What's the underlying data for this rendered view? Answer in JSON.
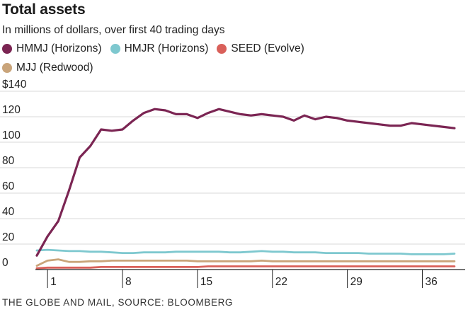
{
  "chart_data": {
    "type": "line",
    "title": "Total assets",
    "subtitle": "In millions of dollars, over first 40 trading days",
    "source": "THE GLOBE AND MAIL, SOURCE: BLOOMBERG",
    "xlabel": "",
    "ylabel": "",
    "x_ticks": [
      1,
      8,
      15,
      22,
      29,
      36
    ],
    "x_range": [
      0,
      40
    ],
    "y_ticks": [
      "$140",
      "120",
      "100",
      "80",
      "60",
      "40",
      "20",
      "0"
    ],
    "y_tick_values": [
      140,
      120,
      100,
      80,
      60,
      40,
      20,
      0
    ],
    "ylim": [
      0,
      140
    ],
    "grid": "horizontal",
    "legend_position": "top-left",
    "x": [
      0,
      1,
      2,
      3,
      4,
      5,
      6,
      7,
      8,
      9,
      10,
      11,
      12,
      13,
      14,
      15,
      16,
      17,
      18,
      19,
      20,
      21,
      22,
      23,
      24,
      25,
      26,
      27,
      28,
      29,
      30,
      31,
      32,
      33,
      34,
      35,
      36,
      37,
      38,
      39
    ],
    "series": [
      {
        "name": "HMMJ (Horizons)",
        "color": "#7b2553",
        "values": [
          11,
          26,
          38,
          62,
          88,
          97,
          110,
          109,
          110,
          117,
          123,
          126,
          125,
          122,
          122,
          119,
          123,
          126,
          124,
          122,
          121,
          122,
          121,
          120,
          117,
          121,
          118,
          120,
          119,
          117,
          116,
          115,
          114,
          113,
          113,
          115,
          114,
          113,
          112,
          111
        ]
      },
      {
        "name": "HMJR (Horizons)",
        "color": "#7ec8cf",
        "values": [
          15,
          15.5,
          15,
          14.5,
          14.5,
          14,
          14,
          13.5,
          13,
          13,
          13.5,
          13.5,
          13.5,
          14,
          14,
          14,
          14,
          14,
          13.5,
          13.5,
          14,
          14.5,
          14,
          14,
          13.5,
          13.5,
          13.5,
          13,
          13,
          13,
          13,
          12.5,
          12.5,
          12.5,
          12.5,
          12,
          12,
          12,
          12,
          12.5
        ]
      },
      {
        "name": "SEED (Evolve)",
        "color": "#d9605a",
        "values": [
          1,
          1.5,
          1.5,
          1.5,
          1.5,
          1.5,
          2,
          2,
          2,
          2,
          2,
          2,
          2,
          2,
          2,
          2,
          2.5,
          2.5,
          2.5,
          2.5,
          2.5,
          2.5,
          2.5,
          2.5,
          2.5,
          2.5,
          2.5,
          2.5,
          2.5,
          2.5,
          2.5,
          2.5,
          2.5,
          2.5,
          2.5,
          2.5,
          2.5,
          2.5,
          2.5,
          2.5
        ]
      },
      {
        "name": "MJJ (Redwood)",
        "color": "#c9a47a",
        "values": [
          3,
          7,
          8,
          6,
          6,
          6.5,
          6.5,
          7,
          7,
          7,
          7,
          7,
          7,
          7,
          7,
          6.5,
          6.5,
          6.5,
          6.5,
          6.5,
          6.5,
          7,
          6.5,
          6.5,
          6.5,
          6.5,
          6.5,
          6.5,
          6.5,
          6.5,
          6.5,
          6.5,
          6.5,
          6.5,
          6.5,
          6.5,
          6.5,
          6.5,
          6.5,
          6.5
        ]
      }
    ]
  }
}
